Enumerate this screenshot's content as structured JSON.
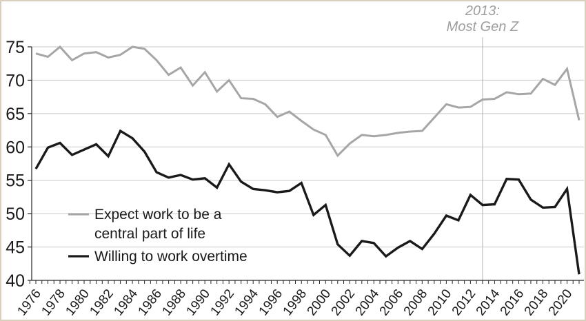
{
  "chart_data": {
    "type": "line",
    "title": "",
    "xlabel": "",
    "ylabel": "",
    "x": [
      1976,
      1977,
      1978,
      1979,
      1980,
      1981,
      1982,
      1983,
      1984,
      1985,
      1986,
      1987,
      1988,
      1989,
      1990,
      1991,
      1992,
      1993,
      1994,
      1995,
      1996,
      1997,
      1998,
      1999,
      2000,
      2001,
      2002,
      2003,
      2004,
      2005,
      2006,
      2007,
      2008,
      2009,
      2010,
      2011,
      2012,
      2013,
      2014,
      2015,
      2016,
      2017,
      2018,
      2019,
      2020,
      2021
    ],
    "x_tick_labels": [
      "1976",
      "1978",
      "1980",
      "1982",
      "1984",
      "1986",
      "1988",
      "1990",
      "1992",
      "1994",
      "1996",
      "1998",
      "2000",
      "2002",
      "2004",
      "2006",
      "2008",
      "2010",
      "2012",
      "2014",
      "2016",
      "2018",
      "2020"
    ],
    "ylim": [
      40,
      75
    ],
    "yticks": [
      40,
      45,
      50,
      55,
      60,
      65,
      70,
      75
    ],
    "grid": "horizontal",
    "series": [
      {
        "name": "Expect work to be a central part of life",
        "color": "#a6a6a6",
        "width": 3,
        "values": [
          74.0,
          73.5,
          75.0,
          73.0,
          74.0,
          74.2,
          73.4,
          73.8,
          75.0,
          74.7,
          73.0,
          70.8,
          71.9,
          69.2,
          71.2,
          68.3,
          70.0,
          67.3,
          67.2,
          66.4,
          64.5,
          65.3,
          63.9,
          62.6,
          61.8,
          58.7,
          60.5,
          61.8,
          61.6,
          61.8,
          62.1,
          62.3,
          62.4,
          64.4,
          66.4,
          65.9,
          66.0,
          67.1,
          67.2,
          68.2,
          67.9,
          68.0,
          70.2,
          69.3,
          71.7,
          64.0
        ]
      },
      {
        "name": "Willing to work overtime",
        "color": "#1a1a1a",
        "width": 3.4,
        "values": [
          56.7,
          59.9,
          60.6,
          58.8,
          59.6,
          60.4,
          58.6,
          62.4,
          61.3,
          59.3,
          56.2,
          55.4,
          55.8,
          55.1,
          55.3,
          53.9,
          57.4,
          54.8,
          53.7,
          53.5,
          53.2,
          53.4,
          54.6,
          49.8,
          51.3,
          45.4,
          43.7,
          45.9,
          45.6,
          43.6,
          44.9,
          45.9,
          44.7,
          47.0,
          49.7,
          49.0,
          52.8,
          51.3,
          51.4,
          55.2,
          55.1,
          52.1,
          50.9,
          51.0,
          53.7,
          40.9
        ]
      }
    ],
    "annotation": {
      "lines": [
        "2013:",
        "Most Gen Z"
      ],
      "at_year": 2013,
      "color": "#9e9e9e",
      "has_vertical_line": true
    },
    "legend": {
      "position": "inside-left",
      "entries": [
        {
          "label_lines": [
            "Expect work to be a",
            "central part of life"
          ],
          "color": "#a6a6a6"
        },
        {
          "label_lines": [
            "Willing to work overtime"
          ],
          "color": "#1a1a1a"
        }
      ]
    },
    "colors": {
      "axis": "#262626",
      "gridline": "#c9c9c9",
      "tick_label": "#1a1a1a",
      "reference_line": "#b5b5b5",
      "frame_border": "#d8d0bd",
      "background": "#ffffff"
    }
  }
}
